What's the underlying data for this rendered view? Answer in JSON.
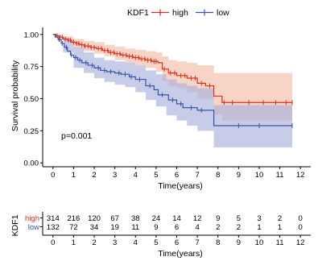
{
  "chart_data": {
    "type": "line",
    "subtype": "kaplan-meier",
    "legend": {
      "title": "KDF1",
      "placement": "top-center",
      "entries": [
        {
          "name": "high",
          "color": "#d7301f"
        },
        {
          "name": "low",
          "color": "#3a52a8"
        }
      ]
    },
    "ylabel": "Survival probability",
    "xlabel": "Time(years)",
    "xlim": [
      -0.5,
      12.5
    ],
    "ylim": [
      -0.03,
      1.03
    ],
    "xticks": [
      0,
      1,
      2,
      3,
      4,
      5,
      6,
      7,
      8,
      9,
      10,
      11,
      12
    ],
    "yticks": [
      0.0,
      0.25,
      0.5,
      0.75,
      1.0
    ],
    "ytick_labels": [
      "0.00",
      "0.25",
      "0.50",
      "0.75",
      "1.00"
    ],
    "pvalue_text": "p=0.001",
    "grid": false,
    "series": [
      {
        "name": "high",
        "color": "#d7301f",
        "fill": "#f4b8a0",
        "steps": [
          [
            0,
            1.0
          ],
          [
            0.15,
            0.99
          ],
          [
            0.3,
            0.98
          ],
          [
            0.5,
            0.965
          ],
          [
            0.7,
            0.955
          ],
          [
            0.9,
            0.94
          ],
          [
            1.1,
            0.93
          ],
          [
            1.3,
            0.92
          ],
          [
            1.5,
            0.91
          ],
          [
            1.8,
            0.9
          ],
          [
            2.1,
            0.89
          ],
          [
            2.4,
            0.875
          ],
          [
            2.7,
            0.86
          ],
          [
            3.0,
            0.85
          ],
          [
            3.3,
            0.84
          ],
          [
            3.6,
            0.83
          ],
          [
            3.9,
            0.82
          ],
          [
            4.2,
            0.81
          ],
          [
            4.5,
            0.8
          ],
          [
            4.8,
            0.79
          ],
          [
            5.1,
            0.78
          ],
          [
            5.3,
            0.73
          ],
          [
            5.6,
            0.7
          ],
          [
            6.0,
            0.68
          ],
          [
            6.5,
            0.66
          ],
          [
            7.0,
            0.62
          ],
          [
            7.4,
            0.6
          ],
          [
            7.8,
            0.52
          ],
          [
            8.2,
            0.47
          ],
          [
            11.6,
            0.47
          ]
        ],
        "upper": [
          [
            0,
            1.0
          ],
          [
            0.5,
            0.985
          ],
          [
            1.0,
            0.965
          ],
          [
            1.5,
            0.95
          ],
          [
            2.0,
            0.94
          ],
          [
            2.5,
            0.92
          ],
          [
            3.0,
            0.905
          ],
          [
            3.5,
            0.89
          ],
          [
            4.0,
            0.88
          ],
          [
            4.5,
            0.87
          ],
          [
            5.0,
            0.86
          ],
          [
            5.3,
            0.83
          ],
          [
            5.6,
            0.8
          ],
          [
            6.0,
            0.79
          ],
          [
            6.5,
            0.78
          ],
          [
            7.0,
            0.76
          ],
          [
            7.8,
            0.7
          ],
          [
            8.2,
            0.7
          ],
          [
            11.6,
            0.7
          ]
        ],
        "lower": [
          [
            0,
            1.0
          ],
          [
            0.5,
            0.945
          ],
          [
            1.0,
            0.895
          ],
          [
            1.5,
            0.87
          ],
          [
            2.0,
            0.85
          ],
          [
            2.5,
            0.83
          ],
          [
            3.0,
            0.8
          ],
          [
            3.5,
            0.78
          ],
          [
            4.0,
            0.76
          ],
          [
            4.5,
            0.74
          ],
          [
            5.0,
            0.71
          ],
          [
            5.3,
            0.64
          ],
          [
            5.6,
            0.6
          ],
          [
            6.0,
            0.58
          ],
          [
            6.5,
            0.55
          ],
          [
            7.0,
            0.5
          ],
          [
            7.8,
            0.38
          ],
          [
            8.2,
            0.33
          ],
          [
            11.6,
            0.33
          ]
        ],
        "censor_x": [
          0.2,
          0.35,
          0.45,
          0.6,
          0.75,
          0.85,
          1.0,
          1.15,
          1.25,
          1.4,
          1.55,
          1.7,
          1.85,
          2.0,
          2.2,
          2.35,
          2.5,
          2.65,
          2.8,
          2.95,
          3.1,
          3.25,
          3.4,
          3.55,
          3.7,
          3.85,
          4.0,
          4.15,
          4.3,
          4.45,
          4.6,
          4.75,
          4.9,
          5.0,
          5.4,
          5.7,
          5.9,
          6.2,
          6.4,
          6.7,
          6.9,
          7.2,
          7.6,
          8.3,
          8.7,
          9.5,
          10.2,
          10.8,
          11.3,
          11.6
        ]
      },
      {
        "name": "low",
        "color": "#3a52a8",
        "fill": "#a9b0dc",
        "steps": [
          [
            0,
            1.0
          ],
          [
            0.1,
            0.98
          ],
          [
            0.25,
            0.96
          ],
          [
            0.4,
            0.93
          ],
          [
            0.55,
            0.9
          ],
          [
            0.7,
            0.87
          ],
          [
            0.85,
            0.84
          ],
          [
            1.0,
            0.82
          ],
          [
            1.2,
            0.8
          ],
          [
            1.4,
            0.78
          ],
          [
            1.7,
            0.76
          ],
          [
            2.0,
            0.74
          ],
          [
            2.3,
            0.72
          ],
          [
            2.6,
            0.71
          ],
          [
            3.0,
            0.7
          ],
          [
            3.3,
            0.69
          ],
          [
            3.7,
            0.67
          ],
          [
            4.0,
            0.65
          ],
          [
            4.5,
            0.6
          ],
          [
            4.9,
            0.57
          ],
          [
            5.1,
            0.53
          ],
          [
            5.6,
            0.49
          ],
          [
            6.0,
            0.46
          ],
          [
            6.3,
            0.43
          ],
          [
            7.0,
            0.41
          ],
          [
            7.8,
            0.29
          ],
          [
            11.6,
            0.29
          ]
        ],
        "upper": [
          [
            0,
            1.0
          ],
          [
            0.5,
            0.96
          ],
          [
            1.0,
            0.9
          ],
          [
            1.5,
            0.86
          ],
          [
            2.0,
            0.82
          ],
          [
            2.5,
            0.8
          ],
          [
            3.0,
            0.79
          ],
          [
            3.5,
            0.78
          ],
          [
            4.0,
            0.76
          ],
          [
            4.5,
            0.72
          ],
          [
            5.0,
            0.69
          ],
          [
            5.5,
            0.65
          ],
          [
            6.0,
            0.62
          ],
          [
            6.5,
            0.6
          ],
          [
            7.0,
            0.58
          ],
          [
            7.8,
            0.45
          ],
          [
            11.6,
            0.45
          ]
        ],
        "lower": [
          [
            0,
            1.0
          ],
          [
            0.5,
            0.86
          ],
          [
            1.0,
            0.74
          ],
          [
            1.5,
            0.7
          ],
          [
            2.0,
            0.66
          ],
          [
            2.5,
            0.63
          ],
          [
            3.0,
            0.61
          ],
          [
            3.5,
            0.59
          ],
          [
            4.0,
            0.55
          ],
          [
            4.5,
            0.49
          ],
          [
            5.0,
            0.44
          ],
          [
            5.5,
            0.37
          ],
          [
            6.0,
            0.33
          ],
          [
            6.5,
            0.29
          ],
          [
            7.0,
            0.25
          ],
          [
            7.8,
            0.12
          ],
          [
            11.6,
            0.12
          ]
        ],
        "censor_x": [
          0.3,
          0.45,
          0.65,
          0.9,
          1.1,
          1.3,
          1.6,
          1.9,
          2.2,
          2.5,
          2.8,
          3.2,
          3.5,
          3.8,
          4.2,
          4.7,
          5.3,
          5.8,
          6.2,
          6.7,
          7.2,
          9.0,
          10.0,
          11.6
        ]
      }
    ]
  },
  "risk_table": {
    "ylabel": "KDF1",
    "xlabel": "Time(years)",
    "xticks": [
      0,
      1,
      2,
      3,
      4,
      5,
      6,
      7,
      8,
      9,
      10,
      11,
      12
    ],
    "rows": [
      {
        "label": "high",
        "color": "#d7301f",
        "counts": [
          "314",
          "216",
          "120",
          "67",
          "38",
          "24",
          "14",
          "12",
          "9",
          "5",
          "3",
          "2",
          "0"
        ]
      },
      {
        "label": "low",
        "color": "#3a52a8",
        "counts": [
          "132",
          "72",
          "34",
          "19",
          "11",
          "9",
          "6",
          "4",
          "2",
          "2",
          "1",
          "1",
          "0"
        ]
      }
    ]
  }
}
